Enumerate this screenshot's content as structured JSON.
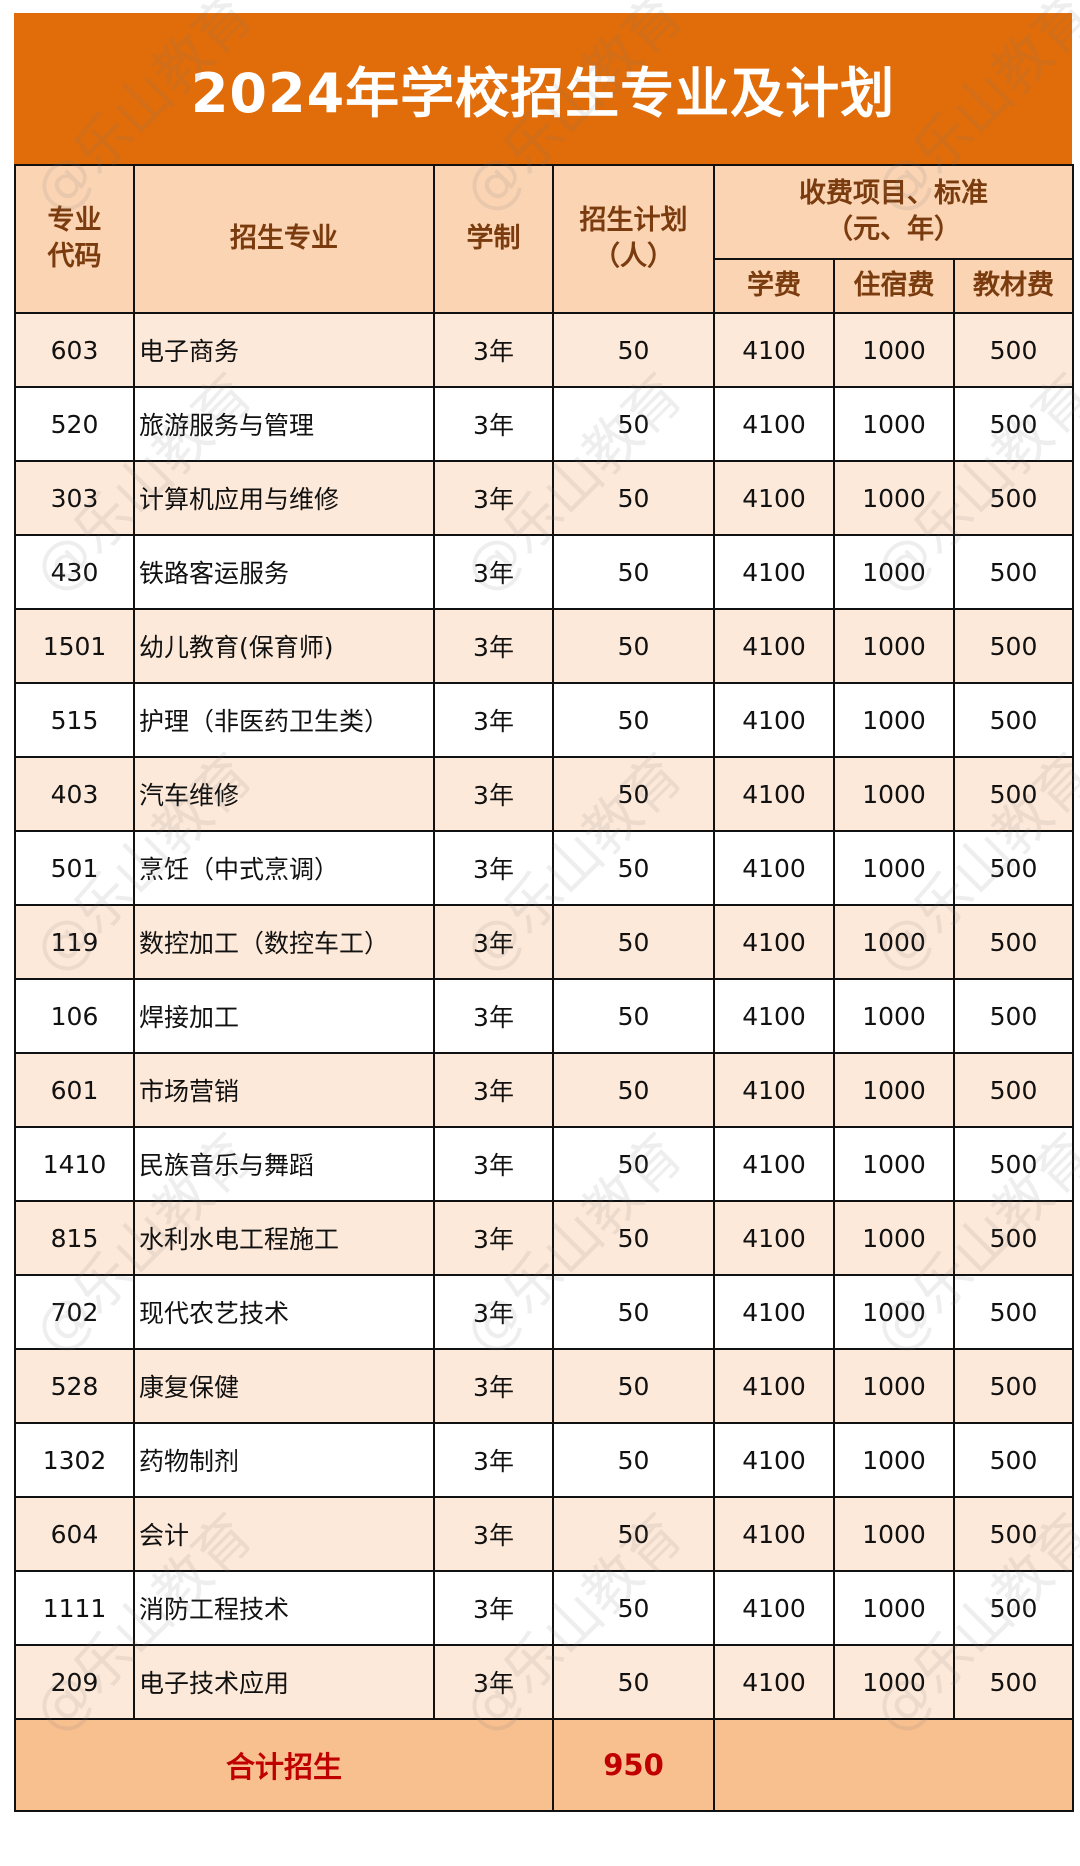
{
  "title": "2024年学校招生专业及计划",
  "watermark": "@乐山教育",
  "header": {
    "code": "专业代码",
    "major": "招生专业",
    "duration": "学制",
    "plan": "招生计划（人）",
    "fees_group": "收费项目、标准（元、年）",
    "tuition": "学费",
    "dorm": "住宿费",
    "books": "教材费"
  },
  "rows": [
    {
      "code": "603",
      "major": "电子商务",
      "duration": "3年",
      "plan": "50",
      "tuition": "4100",
      "dorm": "1000",
      "books": "500"
    },
    {
      "code": "520",
      "major": "旅游服务与管理",
      "duration": "3年",
      "plan": "50",
      "tuition": "4100",
      "dorm": "1000",
      "books": "500"
    },
    {
      "code": "303",
      "major": "计算机应用与维修",
      "duration": "3年",
      "plan": "50",
      "tuition": "4100",
      "dorm": "1000",
      "books": "500"
    },
    {
      "code": "430",
      "major": "铁路客运服务",
      "duration": "3年",
      "plan": "50",
      "tuition": "4100",
      "dorm": "1000",
      "books": "500"
    },
    {
      "code": "1501",
      "major": "幼儿教育(保育师)",
      "duration": "3年",
      "plan": "50",
      "tuition": "4100",
      "dorm": "1000",
      "books": "500"
    },
    {
      "code": "515",
      "major": "护理（非医药卫生类）",
      "duration": "3年",
      "plan": "50",
      "tuition": "4100",
      "dorm": "1000",
      "books": "500"
    },
    {
      "code": "403",
      "major": "汽车维修",
      "duration": "3年",
      "plan": "50",
      "tuition": "4100",
      "dorm": "1000",
      "books": "500"
    },
    {
      "code": "501",
      "major": "烹饪（中式烹调）",
      "duration": "3年",
      "plan": "50",
      "tuition": "4100",
      "dorm": "1000",
      "books": "500"
    },
    {
      "code": "119",
      "major": "数控加工（数控车工）",
      "duration": "3年",
      "plan": "50",
      "tuition": "4100",
      "dorm": "1000",
      "books": "500"
    },
    {
      "code": "106",
      "major": "焊接加工",
      "duration": "3年",
      "plan": "50",
      "tuition": "4100",
      "dorm": "1000",
      "books": "500"
    },
    {
      "code": "601",
      "major": "市场营销",
      "duration": "3年",
      "plan": "50",
      "tuition": "4100",
      "dorm": "1000",
      "books": "500"
    },
    {
      "code": "1410",
      "major": "民族音乐与舞蹈",
      "duration": "3年",
      "plan": "50",
      "tuition": "4100",
      "dorm": "1000",
      "books": "500"
    },
    {
      "code": "815",
      "major": "水利水电工程施工",
      "duration": "3年",
      "plan": "50",
      "tuition": "4100",
      "dorm": "1000",
      "books": "500"
    },
    {
      "code": "702",
      "major": "现代农艺技术",
      "duration": "3年",
      "plan": "50",
      "tuition": "4100",
      "dorm": "1000",
      "books": "500"
    },
    {
      "code": "528",
      "major": "康复保健",
      "duration": "3年",
      "plan": "50",
      "tuition": "4100",
      "dorm": "1000",
      "books": "500"
    },
    {
      "code": "1302",
      "major": "药物制剂",
      "duration": "3年",
      "plan": "50",
      "tuition": "4100",
      "dorm": "1000",
      "books": "500"
    },
    {
      "code": "604",
      "major": "会计",
      "duration": "3年",
      "plan": "50",
      "tuition": "4100",
      "dorm": "1000",
      "books": "500"
    },
    {
      "code": "1111",
      "major": "消防工程技术",
      "duration": "3年",
      "plan": "50",
      "tuition": "4100",
      "dorm": "1000",
      "books": "500"
    },
    {
      "code": "209",
      "major": "电子技术应用",
      "duration": "3年",
      "plan": "50",
      "tuition": "4100",
      "dorm": "1000",
      "books": "500"
    }
  ],
  "total": {
    "label": "合计招生",
    "value": "950"
  },
  "colors": {
    "banner": "#E06C0A",
    "header": "#FBD4B4",
    "row_alt": "#FDE9D9",
    "total_bg": "#F8BF8F",
    "total_text": "#C00000"
  }
}
